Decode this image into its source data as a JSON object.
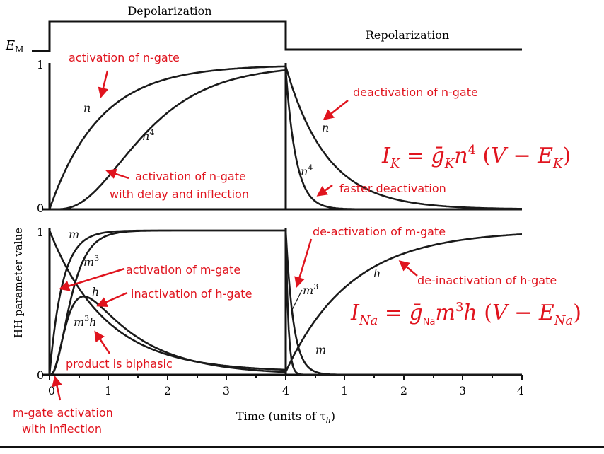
{
  "voltage": {
    "em_label": "E",
    "em_sub": "M",
    "depolarization": "Depolarization",
    "repolarization": "Repolarization"
  },
  "y_axis_label": "HH parameter value",
  "x_axis_label": "Time (units of τ",
  "x_axis_label_sub": "h",
  "x_axis_label_end": ")",
  "x_ticks": [
    "0",
    "1",
    "2",
    "3",
    "4",
    "1",
    "2",
    "3",
    "4"
  ],
  "top_panel": {
    "y_ticks": [
      "1",
      "0"
    ],
    "curve_labels": {
      "n_on": "n",
      "n4_on": "n",
      "n4_on_sup": "4",
      "n_off": "n",
      "n4_off": "n",
      "n4_off_sup": "4"
    }
  },
  "bottom_panel": {
    "y_ticks": [
      "1",
      "0"
    ],
    "curve_labels": {
      "m_on": "m",
      "m3_on": "m",
      "m3_on_sup": "3",
      "h_on": "h",
      "m3h_on": "m",
      "m3h_on_sup": "3",
      "m3h_on_tail": "h",
      "m3_off": "m",
      "m3_off_sup": "3",
      "m_off": "m",
      "h_off": "h"
    }
  },
  "annotations": {
    "act_n": "activation of n-gate",
    "deact_n": "deactivation of n-gate",
    "act_n_delay_1": "activation of n-gate",
    "act_n_delay_2": "with delay and inflection",
    "faster_deact": "faster deactivation",
    "deact_m": "de-activation of m-gate",
    "act_m": "activation of m-gate",
    "inact_h": "inactivation of h-gate",
    "deinact_h": "de-inactivation of h-gate",
    "biphasic": "product is biphasic",
    "m_infl_1": "m-gate activation",
    "m_infl_2": "with inflection"
  },
  "equations": {
    "ik": "I_K = ḡ_K n⁴ (V − E_K)",
    "ina": "I_Na = ḡ_Na m³ h (V − E_Na)"
  },
  "colors": {
    "curve": "#1a1a1a",
    "annotation": "#e0141e"
  }
}
